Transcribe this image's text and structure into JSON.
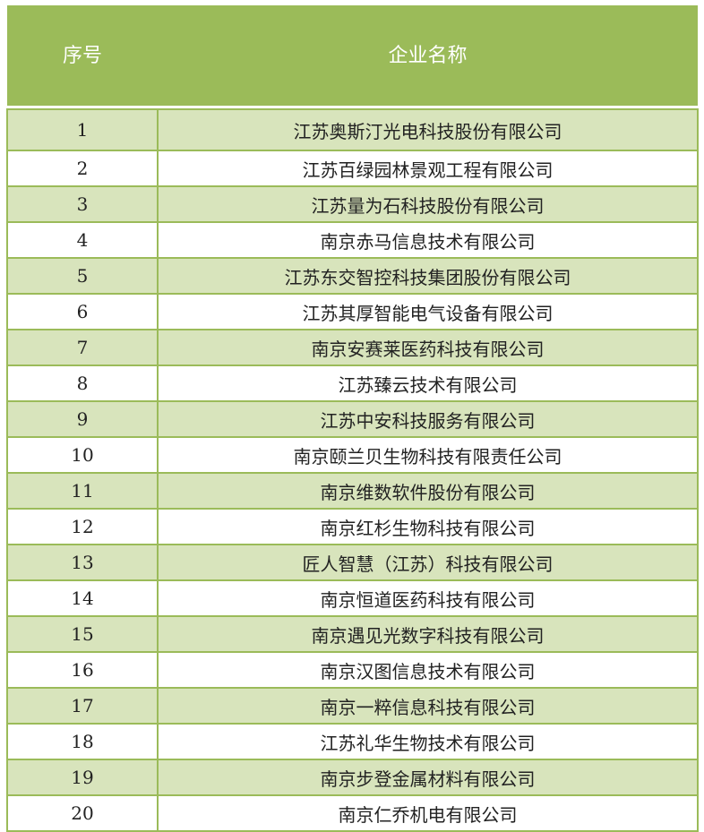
{
  "header": {
    "col_index": "序号",
    "col_name": "企业名称"
  },
  "rows": [
    {
      "no": "1",
      "name": "江苏奥斯汀光电科技股份有限公司"
    },
    {
      "no": "2",
      "name": "江苏百绿园林景观工程有限公司"
    },
    {
      "no": "3",
      "name": "江苏量为石科技股份有限公司"
    },
    {
      "no": "4",
      "name": "南京赤马信息技术有限公司"
    },
    {
      "no": "5",
      "name": "江苏东交智控科技集团股份有限公司"
    },
    {
      "no": "6",
      "name": "江苏其厚智能电气设备有限公司"
    },
    {
      "no": "7",
      "name": "南京安赛莱医药科技有限公司"
    },
    {
      "no": "8",
      "name": "江苏臻云技术有限公司"
    },
    {
      "no": "9",
      "name": "江苏中安科技服务有限公司"
    },
    {
      "no": "10",
      "name": "南京颐兰贝生物科技有限责任公司"
    },
    {
      "no": "11",
      "name": "南京维数软件股份有限公司"
    },
    {
      "no": "12",
      "name": "南京红杉生物科技有限公司"
    },
    {
      "no": "13",
      "name": "匠人智慧（江苏）科技有限公司"
    },
    {
      "no": "14",
      "name": "南京恒道医药科技有限公司"
    },
    {
      "no": "15",
      "name": "南京遇见光数字科技有限公司"
    },
    {
      "no": "16",
      "name": "南京汉图信息技术有限公司"
    },
    {
      "no": "17",
      "name": "南京一粹信息科技有限公司"
    },
    {
      "no": "18",
      "name": "江苏礼华生物技术有限公司"
    },
    {
      "no": "19",
      "name": "南京步登金属材料有限公司"
    },
    {
      "no": "20",
      "name": "南京仁乔机电有限公司"
    }
  ],
  "colors": {
    "header": "#9bbb59",
    "stripe": "#d8e4bc"
  }
}
